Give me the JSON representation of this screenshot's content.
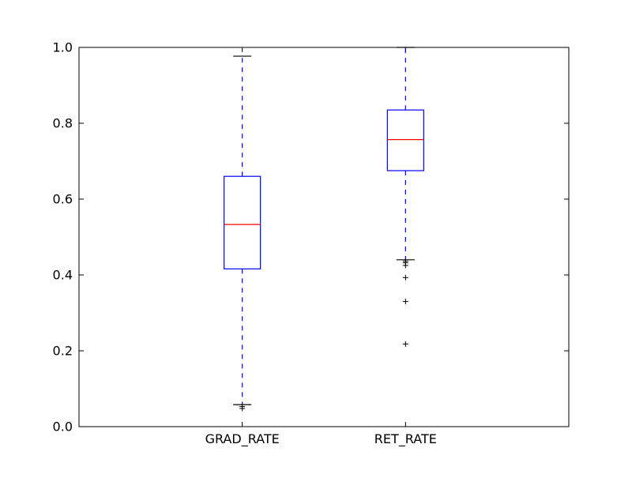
{
  "chart_data": {
    "type": "box",
    "categories": [
      "GRAD_RATE",
      "RET_RATE"
    ],
    "ylim": [
      0.0,
      1.0
    ],
    "yticks": [
      "0.0",
      "0.2",
      "0.4",
      "0.6",
      "0.8",
      "1.0"
    ],
    "grid": false,
    "series": [
      {
        "category": "GRAD_RATE",
        "whisker_low": 0.058,
        "q1": 0.416,
        "median": 0.533,
        "q3": 0.66,
        "whisker_high": 0.977,
        "outliers": [
          0.053,
          0.048
        ]
      },
      {
        "category": "RET_RATE",
        "whisker_low": 0.44,
        "q1": 0.675,
        "median": 0.757,
        "q3": 0.835,
        "whisker_high": 1.0,
        "outliers": [
          0.436,
          0.432,
          0.425,
          0.393,
          0.33,
          0.218
        ]
      }
    ],
    "colors": {
      "box": "#0000ff",
      "whisker": "#0000ff",
      "median": "#ff0000",
      "cap": "#000000",
      "outlier": "#000000",
      "axes": "#000000"
    }
  }
}
